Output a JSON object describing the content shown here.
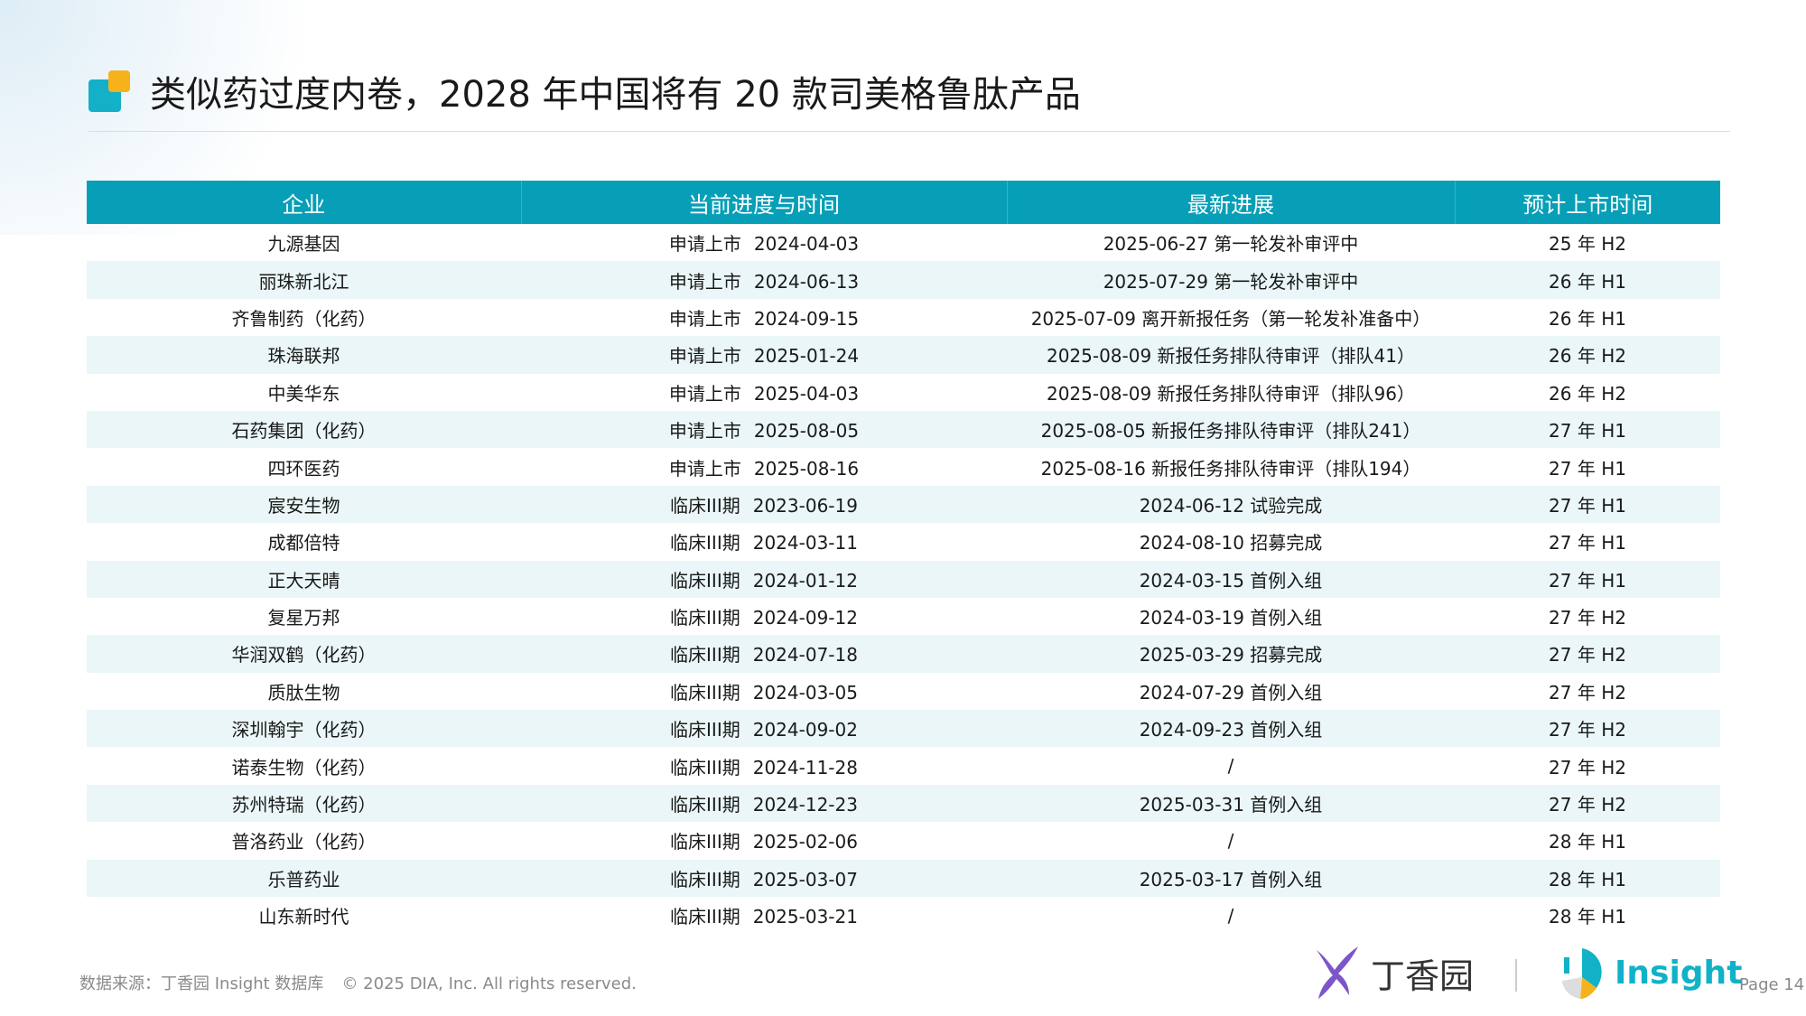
{
  "title": "类似药过度内卷，2028 年中国将有 20 款司美格鲁肽产品",
  "colors": {
    "header_bg": "#079fb7",
    "alt_row": "#eaf6f7",
    "accent_yellow": "#f6b21a",
    "accent_teal": "#13b0c8"
  },
  "table": {
    "headers": [
      "企业",
      "当前进度与时间",
      "最新进展",
      "预计上市时间"
    ],
    "rows": [
      {
        "company": "九源基因",
        "stage": "申请上市",
        "date": "2024-04-03",
        "latest": "2025-06-27 第一轮发补审评中",
        "launch": "25 年 H2"
      },
      {
        "company": "丽珠新北江",
        "stage": "申请上市",
        "date": "2024-06-13",
        "latest": "2025-07-29 第一轮发补审评中",
        "launch": "26 年 H1"
      },
      {
        "company": "齐鲁制药（化药）",
        "stage": "申请上市",
        "date": "2024-09-15",
        "latest": "2025-07-09 离开新报任务（第一轮发补准备中）",
        "launch": "26 年 H1"
      },
      {
        "company": "珠海联邦",
        "stage": "申请上市",
        "date": "2025-01-24",
        "latest": "2025-08-09 新报任务排队待审评（排队41）",
        "launch": "26 年 H2"
      },
      {
        "company": "中美华东",
        "stage": "申请上市",
        "date": "2025-04-03",
        "latest": "2025-08-09 新报任务排队待审评（排队96）",
        "launch": "26 年 H2"
      },
      {
        "company": "石药集团（化药）",
        "stage": "申请上市",
        "date": "2025-08-05",
        "latest": "2025-08-05 新报任务排队待审评（排队241）",
        "launch": "27 年 H1"
      },
      {
        "company": "四环医药",
        "stage": "申请上市",
        "date": "2025-08-16",
        "latest": "2025-08-16 新报任务排队待审评（排队194）",
        "launch": "27 年 H1"
      },
      {
        "company": "宸安生物",
        "stage": "临床III期",
        "date": "2023-06-19",
        "latest": "2024-06-12 试验完成",
        "launch": "27 年 H1"
      },
      {
        "company": "成都倍特",
        "stage": "临床III期",
        "date": "2024-03-11",
        "latest": "2024-08-10 招募完成",
        "launch": "27 年 H1"
      },
      {
        "company": "正大天晴",
        "stage": "临床III期",
        "date": "2024-01-12",
        "latest": "2024-03-15 首例入组",
        "launch": "27 年 H1"
      },
      {
        "company": "复星万邦",
        "stage": "临床III期",
        "date": "2024-09-12",
        "latest": "2024-03-19 首例入组",
        "launch": "27 年 H2"
      },
      {
        "company": "华润双鹤（化药）",
        "stage": "临床III期",
        "date": "2024-07-18",
        "latest": "2025-03-29 招募完成",
        "launch": "27 年 H2"
      },
      {
        "company": "质肽生物",
        "stage": "临床III期",
        "date": "2024-03-05",
        "latest": "2024-07-29 首例入组",
        "launch": "27 年 H2"
      },
      {
        "company": "深圳翰宇（化药）",
        "stage": "临床III期",
        "date": "2024-09-02",
        "latest": "2024-09-23 首例入组",
        "launch": "27 年 H2"
      },
      {
        "company": "诺泰生物（化药）",
        "stage": "临床III期",
        "date": "2024-11-28",
        "latest": "/",
        "launch": "27 年 H2"
      },
      {
        "company": "苏州特瑞（化药）",
        "stage": "临床III期",
        "date": "2024-12-23",
        "latest": "2025-03-31 首例入组",
        "launch": "27 年 H2"
      },
      {
        "company": "普洛药业（化药）",
        "stage": "临床III期",
        "date": "2025-02-06",
        "latest": "/",
        "launch": "28 年 H1"
      },
      {
        "company": "乐普药业",
        "stage": "临床III期",
        "date": "2025-03-07",
        "latest": "2025-03-17 首例入组",
        "launch": "28 年 H1"
      },
      {
        "company": "山东新时代",
        "stage": "临床III期",
        "date": "2025-03-21",
        "latest": "/",
        "launch": "28 年 H1"
      }
    ]
  },
  "footer": {
    "source": "数据来源：丁香园 Insight 数据库",
    "copyright": "© 2025 DIA, Inc. All rights reserved.",
    "logo1_text": "丁香园",
    "logo2_text": "Insight",
    "page": "Page 14"
  }
}
